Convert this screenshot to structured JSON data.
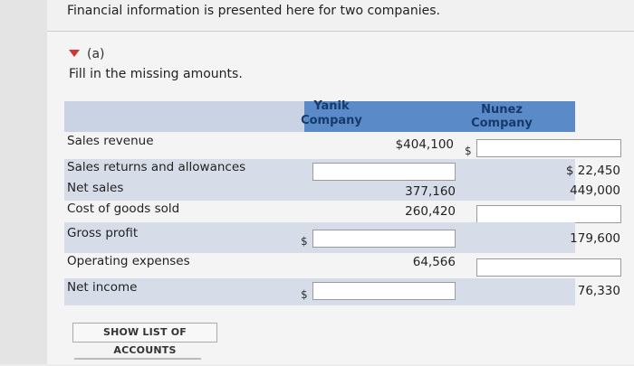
{
  "intro": "Financial information is presented here for two companies.",
  "part": "(a)",
  "instruction": "Fill in the missing amounts.",
  "columns": {
    "yanik": [
      "Yanik",
      "Company"
    ],
    "nunez": [
      "Nunez",
      "Company"
    ]
  },
  "rows": [
    {
      "label": "Sales revenue",
      "yanik": "$404,100",
      "nunez": ""
    },
    {
      "label": "Sales returns and allowances",
      "yanik": "",
      "nunez": "$ 22,450"
    },
    {
      "label": "Net sales",
      "yanik": "377,160",
      "nunez": "449,000"
    },
    {
      "label": "Cost of goods sold",
      "yanik": "260,420",
      "nunez": ""
    },
    {
      "label": "Gross profit",
      "yanik": "",
      "nunez": "179,600"
    },
    {
      "label": "Operating expenses",
      "yanik": "64,566",
      "nunez": ""
    },
    {
      "label": "Net income",
      "yanik": "",
      "nunez": "76,330"
    }
  ],
  "dollar_sign": "$",
  "show_accounts_button": "SHOW LIST OF ACCOUNTS",
  "colors": {
    "header_bar": "#5b8ac9",
    "shade_row": "#d7dde8",
    "triangle": "#d1353a"
  }
}
